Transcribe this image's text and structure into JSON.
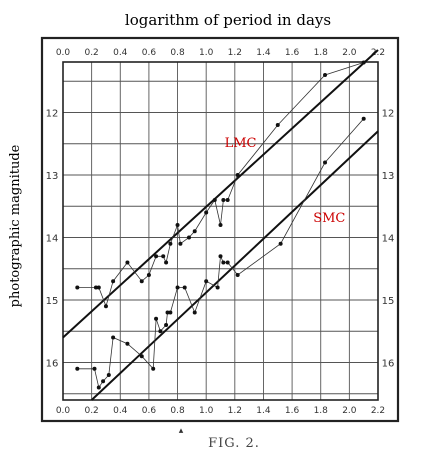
{
  "chart_data": {
    "type": "scatter",
    "title": "logarithm of period in days",
    "ylabel": "photographic magnitude",
    "caption": "FIG. 2.",
    "xlim": [
      0.0,
      2.2
    ],
    "ylim": [
      16.6,
      11.0
    ],
    "y_inverted": true,
    "grid": true,
    "x_ticks": [
      "0.0",
      "0.2",
      "0.4",
      "0.6",
      "0.8",
      "1.0",
      "1.2",
      "1.4",
      "1.6",
      "1.8",
      "2.0",
      "2.2"
    ],
    "x_tick_values": [
      0.0,
      0.2,
      0.4,
      0.6,
      0.8,
      1.0,
      1.2,
      1.4,
      1.6,
      1.8,
      2.0,
      2.2
    ],
    "y_ticks": [
      "12",
      "13",
      "14",
      "15",
      "16"
    ],
    "y_tick_values": [
      12,
      13,
      14,
      15,
      16
    ],
    "annotations": [
      {
        "text": "LMC",
        "x": 1.24,
        "y": 12.55,
        "color": "#cc0000"
      },
      {
        "text": "SMC",
        "x": 1.86,
        "y": 13.75,
        "color": "#cc0000"
      }
    ],
    "series": [
      {
        "name": "LMC",
        "points": [
          [
            0.1,
            14.8
          ],
          [
            0.23,
            14.8
          ],
          [
            0.25,
            14.8
          ],
          [
            0.3,
            15.1
          ],
          [
            0.35,
            14.7
          ],
          [
            0.45,
            14.4
          ],
          [
            0.55,
            14.7
          ],
          [
            0.6,
            14.6
          ],
          [
            0.65,
            14.3
          ],
          [
            0.7,
            14.3
          ],
          [
            0.72,
            14.4
          ],
          [
            0.75,
            14.1
          ],
          [
            0.8,
            13.8
          ],
          [
            0.82,
            14.1
          ],
          [
            0.88,
            14.0
          ],
          [
            0.92,
            13.9
          ],
          [
            1.0,
            13.6
          ],
          [
            1.06,
            13.4
          ],
          [
            1.1,
            13.8
          ],
          [
            1.12,
            13.4
          ],
          [
            1.15,
            13.4
          ],
          [
            1.22,
            13.0
          ],
          [
            1.5,
            12.2
          ],
          [
            1.83,
            11.4
          ],
          [
            2.1,
            11.2
          ]
        ],
        "fit": [
          [
            0.0,
            15.6
          ],
          [
            2.2,
            11.0
          ]
        ]
      },
      {
        "name": "SMC",
        "points": [
          [
            0.1,
            16.1
          ],
          [
            0.22,
            16.1
          ],
          [
            0.25,
            16.4
          ],
          [
            0.28,
            16.3
          ],
          [
            0.32,
            16.2
          ],
          [
            0.35,
            15.6
          ],
          [
            0.45,
            15.7
          ],
          [
            0.55,
            15.9
          ],
          [
            0.63,
            16.1
          ],
          [
            0.65,
            15.3
          ],
          [
            0.68,
            15.5
          ],
          [
            0.72,
            15.4
          ],
          [
            0.73,
            15.2
          ],
          [
            0.75,
            15.2
          ],
          [
            0.8,
            14.8
          ],
          [
            0.85,
            14.8
          ],
          [
            0.92,
            15.2
          ],
          [
            1.0,
            14.7
          ],
          [
            1.08,
            14.8
          ],
          [
            1.1,
            14.3
          ],
          [
            1.12,
            14.4
          ],
          [
            1.15,
            14.4
          ],
          [
            1.22,
            14.6
          ],
          [
            1.52,
            14.1
          ],
          [
            1.83,
            12.8
          ],
          [
            2.1,
            12.1
          ]
        ],
        "fit": [
          [
            0.2,
            16.6
          ],
          [
            2.2,
            12.3
          ]
        ]
      }
    ]
  }
}
